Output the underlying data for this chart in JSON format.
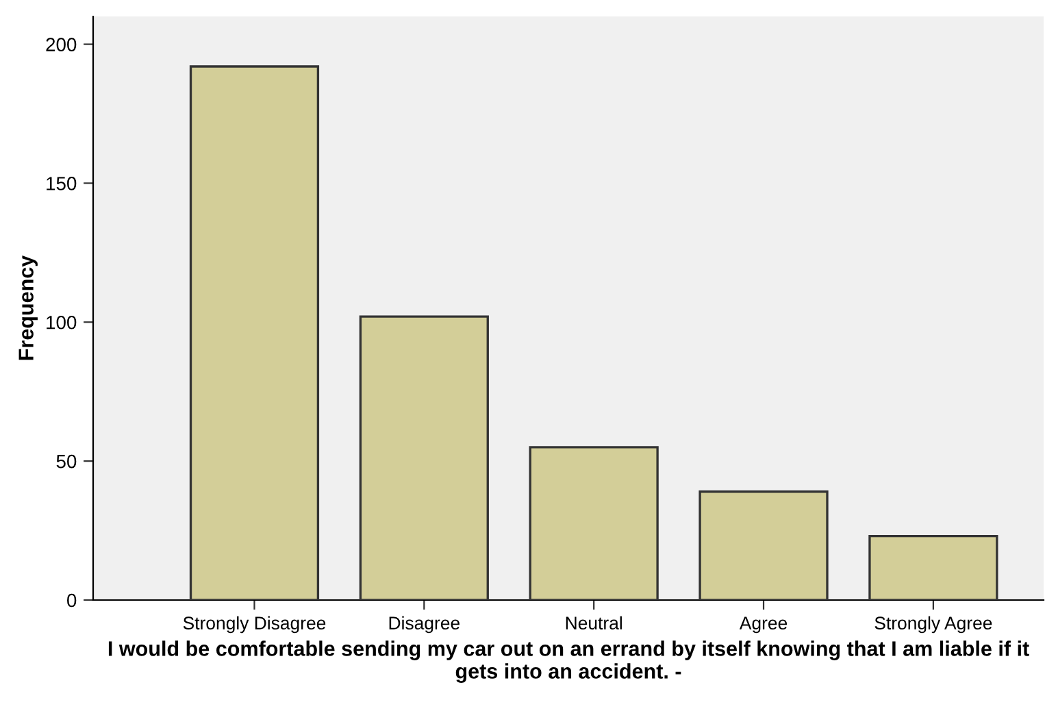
{
  "chart_data": {
    "type": "bar",
    "xlabel": "I would be comfortable sending my car out on an errand by itself knowing that I am liable if it gets into an accident. -",
    "ylabel": "Frequency",
    "categories": [
      "Strongly Disagree",
      "Disagree",
      "Neutral",
      "Agree",
      "Strongly Agree"
    ],
    "values": [
      192,
      102,
      55,
      39,
      23
    ],
    "color": "#d3ce98",
    "ylim": [
      0,
      210
    ],
    "yticks": [
      0,
      50,
      100,
      150,
      200
    ],
    "grid": false
  }
}
